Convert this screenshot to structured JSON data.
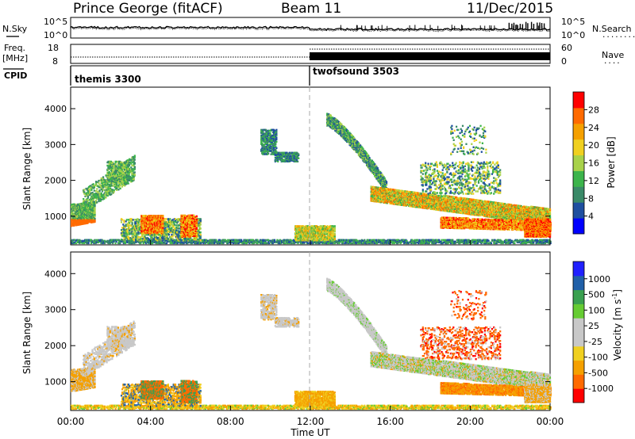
{
  "header": {
    "station": "Prince George (fitACF)",
    "beam": "Beam 11",
    "date": "11/Dec/2015"
  },
  "strip_labels": {
    "nsky": "N.Sky",
    "freq_line1": "Freq.",
    "freq_line2": "[MHz]",
    "cpid": "CPID",
    "nsearch": "N.Search",
    "nave": "Nave",
    "nsearch_dots": "........",
    "nave_dots": "...."
  },
  "strip_ticks": {
    "noise_left": [
      "10^5",
      "10^0"
    ],
    "noise_right": [
      "10^5",
      "10^0"
    ],
    "freq_left": [
      "18",
      "8"
    ],
    "nave_right": [
      "60",
      "0"
    ]
  },
  "cpid_programs": [
    {
      "name": "themis 3300",
      "start_hour": 0
    },
    {
      "name": "twofsound 3503",
      "start_hour": 12
    }
  ],
  "chart_data": [
    {
      "type": "heatmap",
      "panel": "power",
      "xlabel": "",
      "ylabel": "Slant Range [km]",
      "x_range_hours": [
        0,
        24
      ],
      "ylim": [
        200,
        4600
      ],
      "y_ticks": [
        1000,
        2000,
        3000,
        4000
      ],
      "colorbar": {
        "label": "Power [dB]",
        "ticks": [
          4,
          8,
          12,
          16,
          20,
          24,
          28
        ],
        "range": [
          0,
          32
        ]
      }
    },
    {
      "type": "heatmap",
      "panel": "velocity",
      "xlabel": "Time UT",
      "ylabel": "Slant Range [km]",
      "x_range_hours": [
        0,
        24
      ],
      "x_ticks": [
        "00:00",
        "04:00",
        "08:00",
        "12:00",
        "16:00",
        "20:00",
        "00:00"
      ],
      "ylim": [
        200,
        4600
      ],
      "y_ticks": [
        1000,
        2000,
        3000,
        4000
      ],
      "colorbar": {
        "label": "Velocity [m s^-1]",
        "ticks": [
          "1000",
          "500",
          "100",
          "25",
          "-25",
          "-100",
          "-500",
          "-1000"
        ]
      }
    }
  ],
  "colors": {
    "power_scale": [
      "#0000ff",
      "#1f4fa0",
      "#3a8a68",
      "#3cb44b",
      "#a8d24a",
      "#f0d020",
      "#f5a000",
      "#ff6a00",
      "#ff0000"
    ],
    "velocity_scale": [
      "#ff0000",
      "#ff6a00",
      "#f5a000",
      "#f0d020",
      "#c8c8c8",
      "#c8c8c8",
      "#66cc33",
      "#3aa050",
      "#2060a8",
      "#2020ff"
    ]
  }
}
